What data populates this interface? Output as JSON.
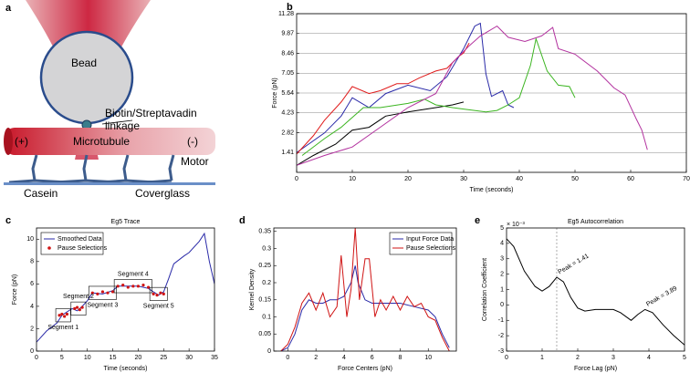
{
  "diagram": {
    "panel": "a",
    "bead": "Bead",
    "linkage": [
      "Biotin/Streptavadin",
      "linkage"
    ],
    "plus_end": "(+)",
    "microtubule": "Microtubule",
    "minus_end": "(-)",
    "motor": "Motor",
    "casein": "Casein",
    "coverglass": "Coverglass"
  },
  "chart_data": [
    {
      "type": "line",
      "panel": "b",
      "xlabel": "Time (seconds)",
      "ylabel": "Force (pN)",
      "xlim": [
        0,
        70
      ],
      "xticks": [
        0,
        10,
        20,
        30,
        40,
        50,
        60,
        70
      ],
      "ylim": [
        0,
        11.28
      ],
      "yticks": [
        1.41,
        2.82,
        4.23,
        5.64,
        7.05,
        8.46,
        9.87,
        11.28
      ],
      "grid": "y",
      "series": [
        {
          "color": "#000000",
          "style": "line",
          "x": [
            0,
            3,
            7,
            10,
            13,
            16,
            20,
            25,
            28,
            30
          ],
          "values": [
            0.5,
            1.2,
            2,
            3,
            3.2,
            4,
            4.3,
            4.6,
            4.8,
            5.0
          ]
        },
        {
          "color": "#2a2aa8",
          "style": "line",
          "x": [
            0,
            5,
            8,
            10,
            13,
            16,
            20,
            24,
            27,
            30,
            32,
            33,
            34,
            35,
            37,
            38,
            39
          ],
          "values": [
            1.4,
            2.8,
            4,
            5.3,
            4.6,
            5.6,
            6.2,
            5.8,
            6.8,
            8.8,
            10.4,
            10.6,
            7,
            5.4,
            5.8,
            4.8,
            4.6
          ]
        },
        {
          "color": "#e01b1b",
          "style": "line",
          "x": [
            0,
            3,
            5,
            8,
            10,
            13,
            15,
            18,
            20,
            22,
            25,
            27,
            29,
            30,
            31
          ],
          "values": [
            1.3,
            2.6,
            3.7,
            5,
            6.1,
            5.6,
            5.8,
            6.3,
            6.3,
            6.7,
            7.2,
            7.4,
            8.2,
            8.5,
            9.2
          ]
        },
        {
          "color": "#3cb521",
          "style": "line",
          "x": [
            1,
            5,
            8,
            12,
            15,
            20,
            23,
            25,
            28,
            30,
            34,
            36,
            38,
            40,
            42,
            43,
            45,
            47,
            49,
            50
          ],
          "values": [
            1.2,
            2.4,
            3.2,
            4.6,
            4.6,
            4.9,
            5.2,
            4.8,
            4.6,
            4.5,
            4.3,
            4.4,
            4.8,
            5.3,
            7.6,
            9.5,
            7.2,
            6.2,
            6.1,
            5.3
          ]
        },
        {
          "color": "#b3339f",
          "style": "line",
          "x": [
            0,
            5,
            10,
            15,
            20,
            25,
            28,
            31,
            33,
            36,
            38,
            41,
            44,
            46,
            47,
            50,
            54,
            57,
            59,
            61,
            62,
            63
          ],
          "values": [
            0.5,
            1.2,
            1.8,
            3.2,
            4.6,
            5.6,
            7.8,
            9.0,
            9.7,
            10.4,
            9.6,
            9.3,
            9.7,
            10.3,
            8.8,
            8.4,
            7.2,
            6.0,
            5.5,
            3.8,
            3.0,
            1.6
          ]
        }
      ]
    },
    {
      "type": "line",
      "panel": "c",
      "title": "Eg5 Trace",
      "xlabel": "Time (seconds)",
      "ylabel": "Force (pN)",
      "xlim": [
        0,
        35
      ],
      "xticks": [
        0,
        5,
        10,
        15,
        20,
        25,
        30,
        35
      ],
      "ylim": [
        0,
        11
      ],
      "yticks": [
        0,
        2,
        4,
        6,
        8,
        10
      ],
      "legend": "upper left",
      "series": [
        {
          "name": "Smoothed Data",
          "color": "#2a2aa8",
          "style": "line",
          "x": [
            0,
            2,
            4,
            5,
            6,
            7,
            8,
            9,
            10,
            11,
            13,
            15,
            16,
            18,
            20,
            22,
            23,
            24,
            25,
            26,
            27,
            29,
            30,
            32,
            33,
            34,
            35
          ],
          "values": [
            0.8,
            1.8,
            2.5,
            3.2,
            3.5,
            3.8,
            3.6,
            4,
            4.5,
            5.2,
            5.1,
            5.4,
            5.8,
            5.8,
            5.8,
            5.6,
            5.3,
            5,
            5.3,
            6.5,
            7.8,
            8.5,
            8.8,
            9.8,
            10.5,
            8,
            6
          ]
        },
        {
          "name": "Pause Selections",
          "color": "#d01515",
          "style": "dots",
          "segments": [
            {
              "label": "Segment 1",
              "x": [
                4.5,
                5,
                5.5,
                6
              ],
              "values": [
                3.2,
                3.3,
                3.1,
                3.3
              ]
            },
            {
              "label": "Segment 2",
              "x": [
                7.5,
                8,
                8.5,
                9
              ],
              "values": [
                3.8,
                3.9,
                3.7,
                3.9
              ]
            },
            {
              "label": "Segment 3",
              "x": [
                11,
                12,
                13,
                14,
                15
              ],
              "values": [
                5.2,
                5.1,
                5.3,
                5.2,
                5.3
              ]
            },
            {
              "label": "Segment 4",
              "x": [
                16,
                17,
                18,
                19,
                20,
                21,
                22
              ],
              "values": [
                5.8,
                5.9,
                5.7,
                5.8,
                5.8,
                5.9,
                5.7
              ]
            },
            {
              "label": "Segment 5",
              "x": [
                23,
                23.7,
                24.4,
                25
              ],
              "values": [
                5.1,
                5.0,
                5.2,
                5.1
              ]
            }
          ]
        }
      ]
    },
    {
      "type": "line",
      "panel": "d",
      "xlabel": "Force Centers (pN)",
      "ylabel": "Kernel Density",
      "xlim": [
        -1,
        12
      ],
      "xticks": [
        0,
        2,
        4,
        6,
        8,
        10
      ],
      "ylim": [
        0,
        0.36
      ],
      "yticks": [
        0,
        0.05,
        0.1,
        0.15,
        0.2,
        0.25,
        0.3,
        0.35
      ],
      "legend": "upper right",
      "series": [
        {
          "name": "Input Force Data",
          "color": "#2a2aa8",
          "style": "line",
          "x": [
            -0.5,
            0,
            0.5,
            1,
            1.5,
            2,
            2.5,
            3,
            3.5,
            4,
            4.5,
            4.8,
            5,
            5.5,
            6,
            7,
            8,
            9,
            10,
            10.5,
            11,
            11.5
          ],
          "values": [
            0,
            0.01,
            0.05,
            0.12,
            0.15,
            0.14,
            0.14,
            0.15,
            0.15,
            0.16,
            0.2,
            0.25,
            0.2,
            0.15,
            0.14,
            0.14,
            0.14,
            0.13,
            0.12,
            0.1,
            0.05,
            0.01
          ]
        },
        {
          "name": "Pause Selections",
          "color": "#d01515",
          "style": "line",
          "x": [
            -0.5,
            0,
            0.5,
            1,
            1.5,
            2,
            2.5,
            3,
            3.5,
            3.8,
            4.2,
            4.5,
            4.8,
            5.1,
            5.5,
            5.8,
            6.2,
            6.6,
            7,
            7.5,
            8,
            8.5,
            9,
            9.5,
            10,
            10.5,
            11,
            11.5
          ],
          "values": [
            0,
            0.02,
            0.07,
            0.14,
            0.17,
            0.12,
            0.17,
            0.1,
            0.13,
            0.28,
            0.1,
            0.18,
            0.36,
            0.15,
            0.27,
            0.27,
            0.1,
            0.15,
            0.12,
            0.16,
            0.12,
            0.16,
            0.13,
            0.14,
            0.1,
            0.09,
            0.04,
            0
          ]
        }
      ]
    },
    {
      "type": "line",
      "panel": "e",
      "title": "Eg5 Autocorrelation",
      "xlabel": "Force Lag (pN)",
      "ylabel": "Correlation Coefficient",
      "y_exponent": "× 10⁻³",
      "xlim": [
        0,
        5
      ],
      "xticks": [
        0,
        1,
        2,
        3,
        4,
        5
      ],
      "ylim": [
        -3,
        5
      ],
      "yticks": [
        -3,
        -2,
        -1,
        0,
        1,
        2,
        3,
        4,
        5
      ],
      "series": [
        {
          "color": "#000000",
          "style": "line",
          "x": [
            0,
            0.2,
            0.5,
            0.8,
            1,
            1.2,
            1.41,
            1.6,
            1.8,
            2,
            2.2,
            2.5,
            3,
            3.2,
            3.5,
            3.7,
            3.89,
            4.1,
            4.4,
            4.7,
            5
          ],
          "values": [
            4.3,
            3.8,
            2.2,
            1.2,
            0.9,
            1.2,
            1.8,
            1.5,
            0.5,
            -0.2,
            -0.4,
            -0.3,
            -0.3,
            -0.5,
            -1,
            -0.6,
            -0.3,
            -0.5,
            -1.3,
            -2,
            -2.6
          ]
        }
      ],
      "peaks": [
        {
          "x": 1.41,
          "label": "Peak = 1.41"
        },
        {
          "x": 3.89,
          "label": "Peak = 3.89"
        }
      ]
    }
  ]
}
